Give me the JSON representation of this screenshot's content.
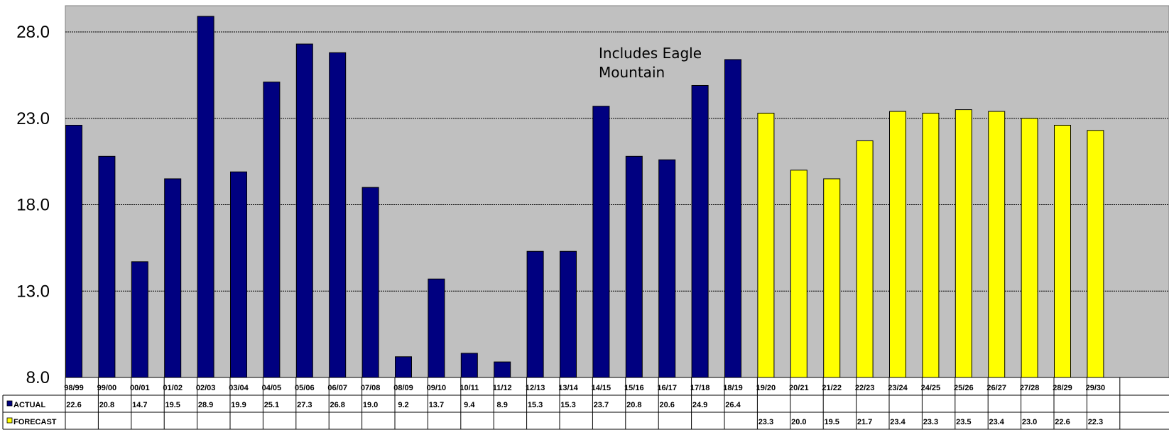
{
  "chart_data": {
    "type": "bar",
    "categories": [
      "98/99",
      "99/00",
      "00/01",
      "01/02",
      "02/03",
      "03/04",
      "04/05",
      "05/06",
      "06/07",
      "07/08",
      "08/09",
      "09/10",
      "10/11",
      "11/12",
      "12/13",
      "13/14",
      "14/15",
      "15/16",
      "16/17",
      "17/18",
      "18/19",
      "19/20",
      "20/21",
      "21/22",
      "22/23",
      "23/24",
      "24/25",
      "25/26",
      "26/27",
      "27/28",
      "28/29",
      "29/30"
    ],
    "series": [
      {
        "name": "ACTUAL",
        "color": "#000080",
        "values": [
          22.6,
          20.8,
          14.7,
          19.5,
          28.9,
          19.9,
          25.1,
          27.3,
          26.8,
          19.0,
          9.2,
          13.7,
          9.4,
          8.9,
          15.3,
          15.3,
          23.7,
          20.8,
          20.6,
          24.9,
          26.4,
          null,
          null,
          null,
          null,
          null,
          null,
          null,
          null,
          null,
          null,
          null
        ],
        "labels": [
          "22.6",
          "20.8",
          "14.7",
          "19.5",
          "28.9",
          "19.9",
          "25.1",
          "27.3",
          "26.8",
          "19.0",
          "9.2",
          "13.7",
          "9.4",
          "8.9",
          "15.3",
          "15.3",
          "23.7",
          "20.8",
          "20.6",
          "24.9",
          "26.4",
          "",
          "",
          "",
          "",
          "",
          "",
          "",
          "",
          "",
          "",
          ""
        ]
      },
      {
        "name": "FORECAST",
        "color": "#FFFF00",
        "values": [
          null,
          null,
          null,
          null,
          null,
          null,
          null,
          null,
          null,
          null,
          null,
          null,
          null,
          null,
          null,
          null,
          null,
          null,
          null,
          null,
          null,
          23.3,
          20.0,
          19.5,
          21.7,
          23.4,
          23.3,
          23.5,
          23.4,
          23.0,
          22.6,
          22.3
        ],
        "labels": [
          "",
          "",
          "",
          "",
          "",
          "",
          "",
          "",
          "",
          "",
          "",
          "",
          "",
          "",
          "",
          "",
          "",
          "",
          "",
          "",
          "",
          "23.3",
          "20.0",
          "19.5",
          "21.7",
          "23.4",
          "23.3",
          "23.5",
          "23.4",
          "23.0",
          "22.6",
          "22.3"
        ]
      }
    ],
    "yticks": [
      "8.0",
      "13.0",
      "18.0",
      "23.0",
      "28.0"
    ],
    "ylim": [
      8,
      29.5
    ],
    "annotation": "Includes Eagle Mountain",
    "grid": true,
    "plot_background": "#C0C0C0",
    "legend": "data-table"
  }
}
